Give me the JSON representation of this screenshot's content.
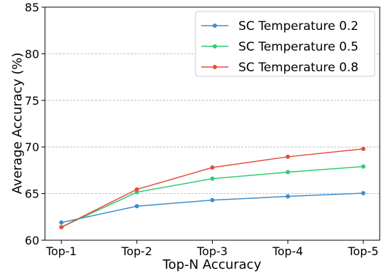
{
  "chart_data": {
    "type": "line",
    "title": "",
    "xlabel": "Top-N Accuracy",
    "ylabel": "Average Accuracy (%)",
    "categories": [
      "Top-1",
      "Top-2",
      "Top-3",
      "Top-4",
      "Top-5"
    ],
    "ylim": [
      60,
      85
    ],
    "yticks": [
      60,
      65,
      70,
      75,
      80,
      85
    ],
    "grid": "horizontal dashed",
    "legend_position": "top-right",
    "series": [
      {
        "name": "SC Temperature 0.2",
        "color": "#3b8fd1",
        "values": [
          61.9,
          63.65,
          64.3,
          64.7,
          65.05
        ]
      },
      {
        "name": "SC Temperature 0.5",
        "color": "#2ecc71",
        "values": [
          61.4,
          65.15,
          66.6,
          67.3,
          67.9
        ]
      },
      {
        "name": "SC Temperature 0.8",
        "color": "#e74c3c",
        "values": [
          61.4,
          65.45,
          67.8,
          68.95,
          69.8
        ]
      }
    ]
  }
}
